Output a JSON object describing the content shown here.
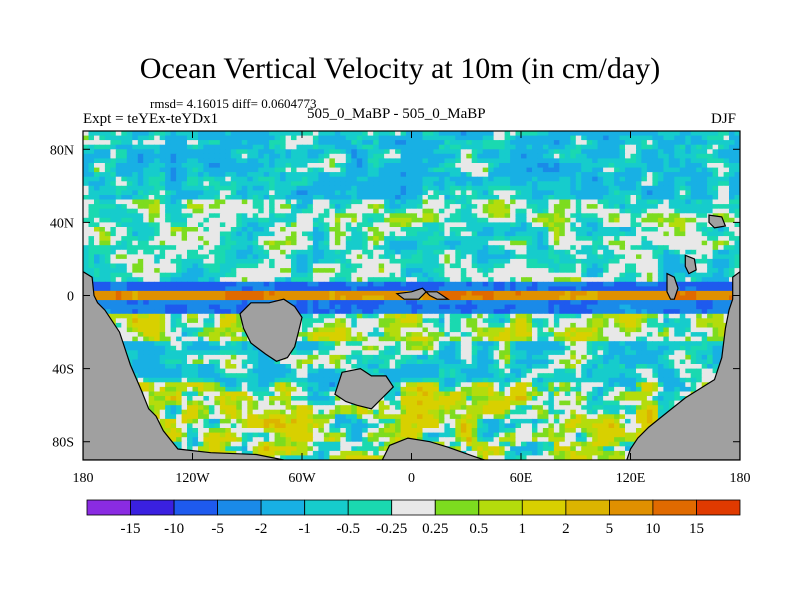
{
  "figure": {
    "title": "Ocean Vertical Velocity at 10m (in cm/day)",
    "stats_line": "rmsd= 4.16015 diff= 0.0604773",
    "experiment": "Expt = teYEx-teYDx1",
    "case": "505_0_MaBP - 505_0_MaBP",
    "season": "DJF"
  },
  "map": {
    "type": "filled-contour",
    "variable": "Ocean Vertical Velocity at 10m",
    "units": "cm/day",
    "lon_range": [
      -180,
      180
    ],
    "lat_range": [
      -90,
      90
    ],
    "land_color": "#a0a0a0",
    "x_ticks": [
      {
        "value": -180,
        "label": "180"
      },
      {
        "value": -120,
        "label": "120W"
      },
      {
        "value": -60,
        "label": "60W"
      },
      {
        "value": 0,
        "label": "0"
      },
      {
        "value": 60,
        "label": "60E"
      },
      {
        "value": 120,
        "label": "120E"
      },
      {
        "value": 180,
        "label": "180"
      }
    ],
    "y_ticks": [
      {
        "value": 80,
        "label": "80N"
      },
      {
        "value": 40,
        "label": "40N"
      },
      {
        "value": 0,
        "label": "0"
      },
      {
        "value": -40,
        "label": "40S"
      },
      {
        "value": -80,
        "label": "80S"
      }
    ]
  },
  "colorbar": {
    "colors": [
      "#8a2be2",
      "#3a20e0",
      "#1e5aee",
      "#1a8ae8",
      "#18b0e4",
      "#16cccc",
      "#1ad9b0",
      "#e8e8e8",
      "#7ddc1f",
      "#b4dc0c",
      "#d8d000",
      "#dcb400",
      "#e09000",
      "#e06a00",
      "#e03a00"
    ],
    "labels": [
      "-15",
      "-10",
      "-5",
      "-2",
      "-1",
      "-0.5",
      "-0.25",
      "0.25",
      "0.5",
      "1",
      "2",
      "5",
      "10",
      "15"
    ]
  }
}
